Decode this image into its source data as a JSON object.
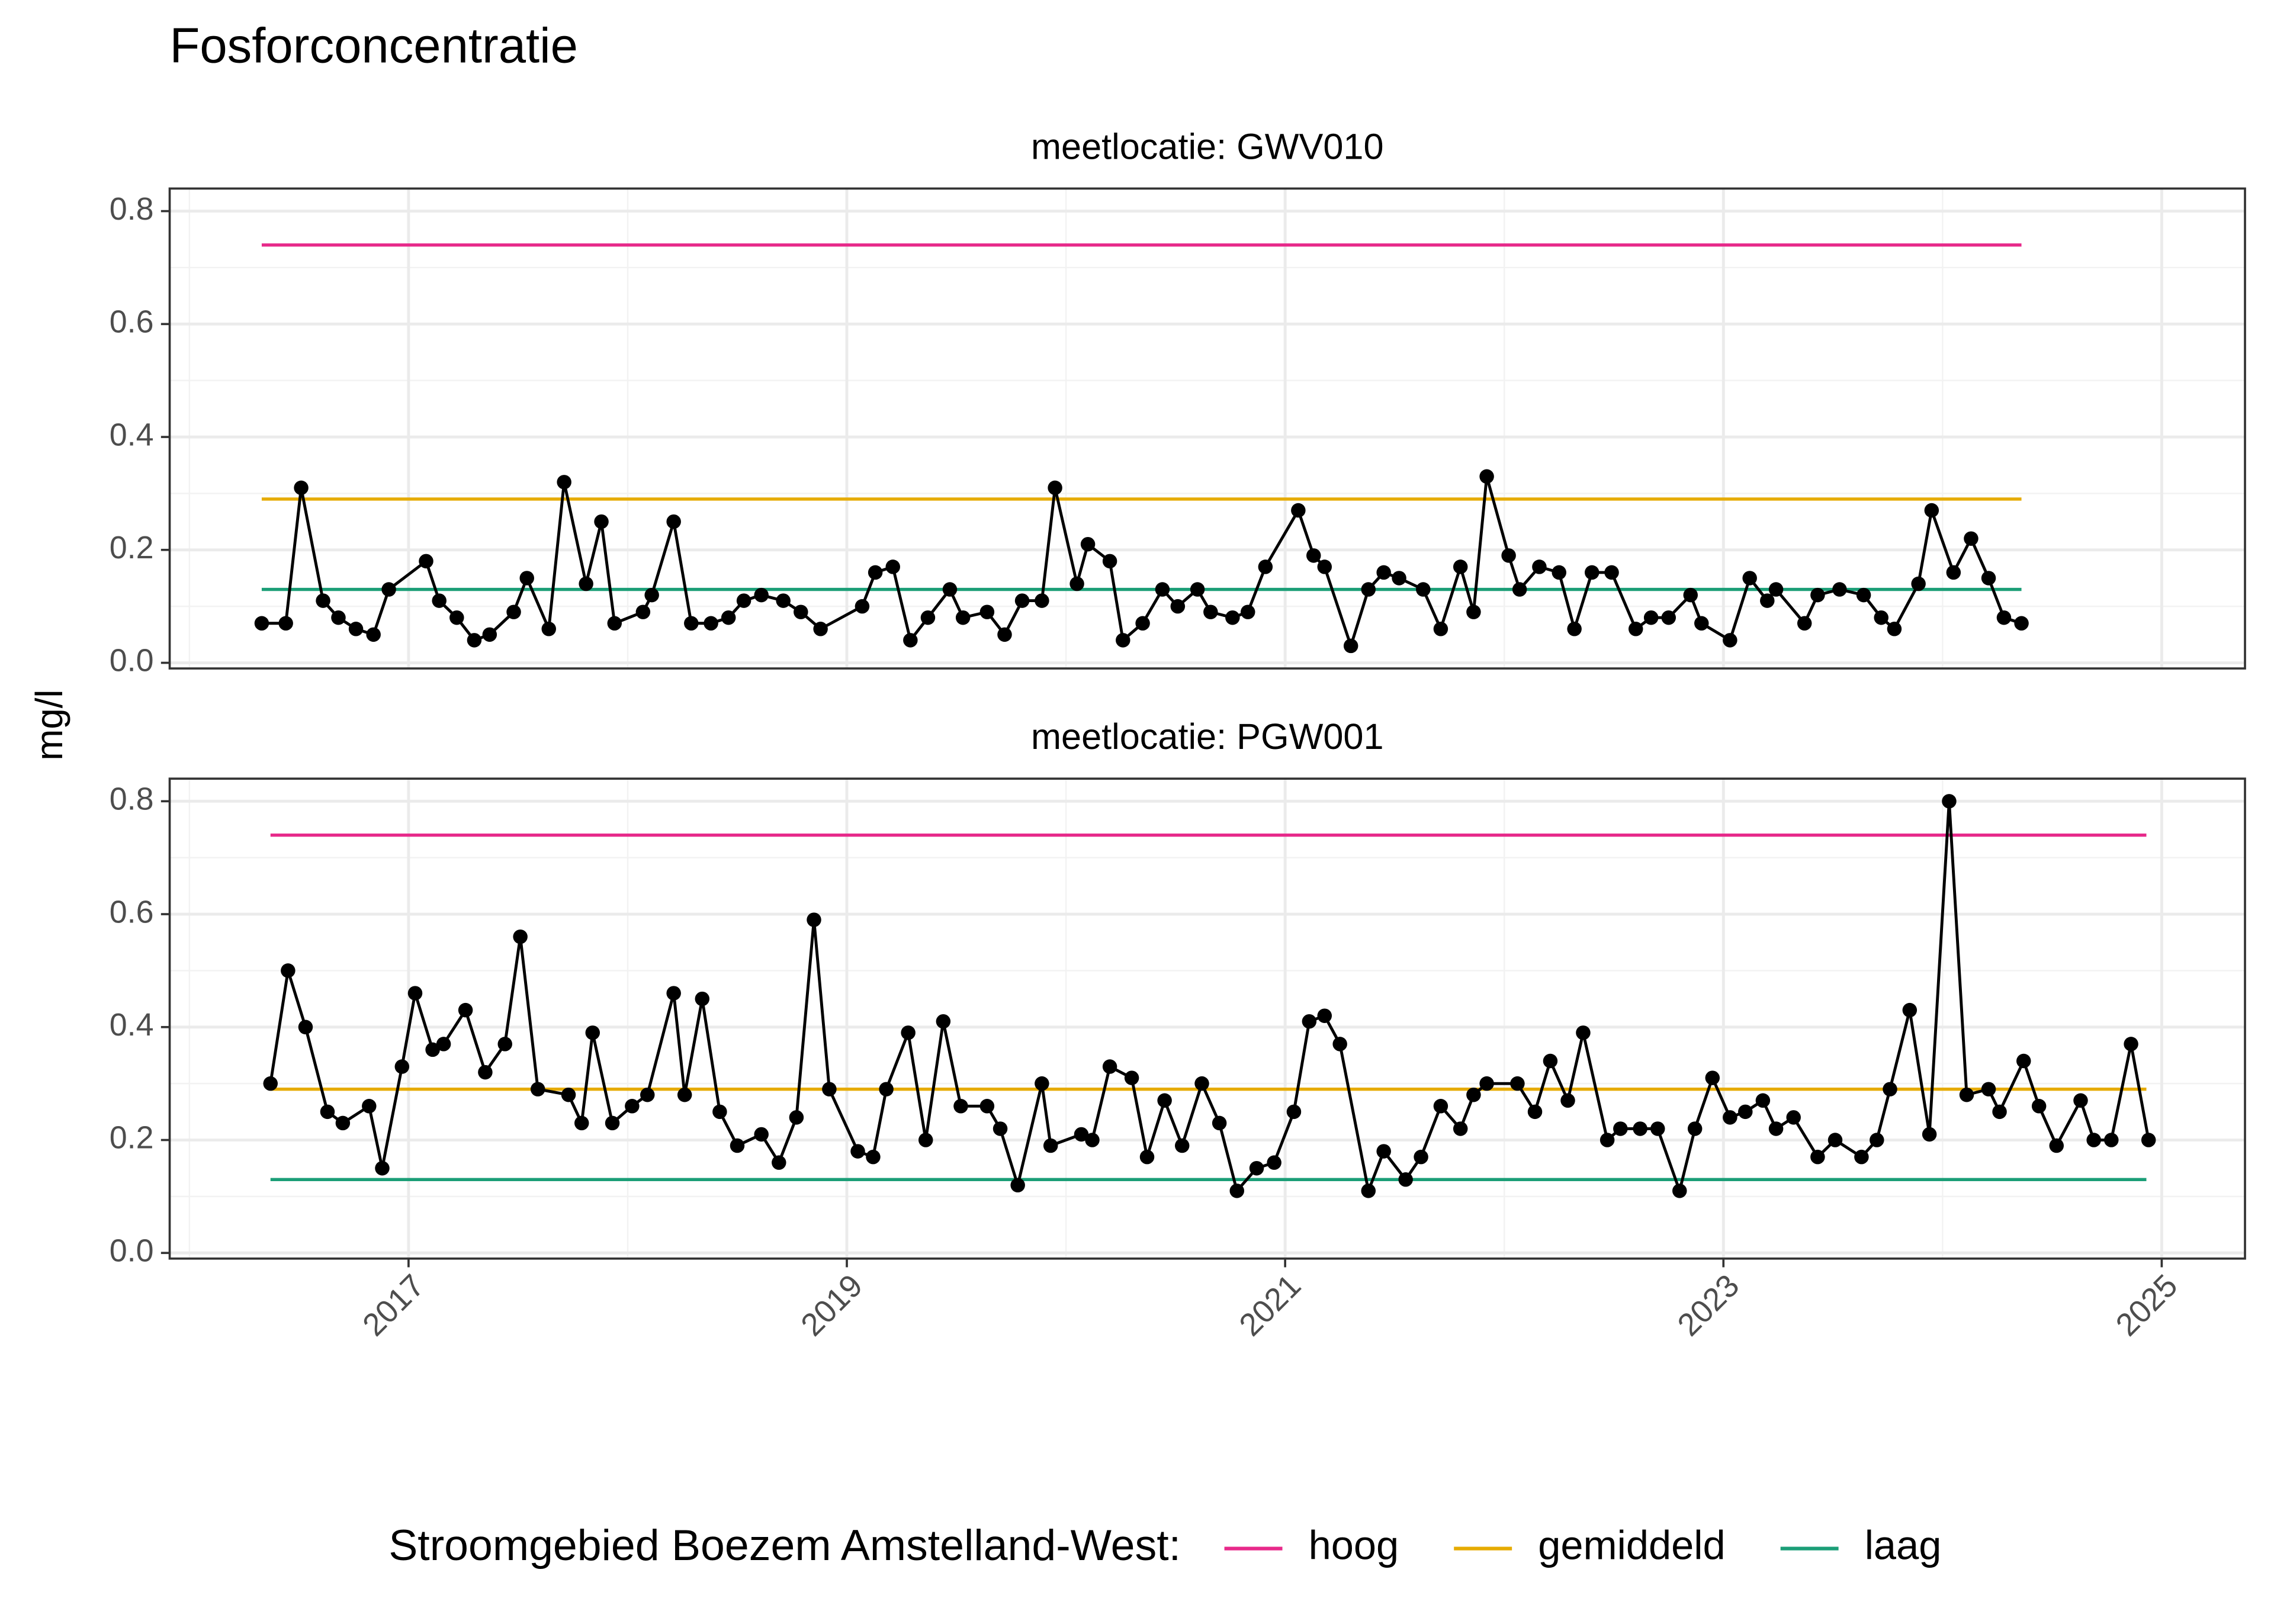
{
  "title": "Fosforconcentratie",
  "y_label": "mg/l",
  "legend_title": "Stroomgebied Boezem Amstelland-West:",
  "chart_data": [
    {
      "type": "line",
      "title": "meetlocatie: GWV010",
      "color": "#000000",
      "x": [
        2016.33,
        2016.44,
        2016.51,
        2016.61,
        2016.68,
        2016.76,
        2016.84,
        2016.91,
        2017.08,
        2017.14,
        2017.22,
        2017.3,
        2017.37,
        2017.48,
        2017.54,
        2017.64,
        2017.71,
        2017.81,
        2017.88,
        2017.94,
        2018.07,
        2018.11,
        2018.21,
        2018.29,
        2018.38,
        2018.46,
        2018.53,
        2018.61,
        2018.71,
        2018.79,
        2018.88,
        2019.07,
        2019.13,
        2019.21,
        2019.29,
        2019.37,
        2019.47,
        2019.53,
        2019.64,
        2019.72,
        2019.8,
        2019.89,
        2019.95,
        2020.05,
        2020.1,
        2020.2,
        2020.26,
        2020.35,
        2020.44,
        2020.51,
        2020.6,
        2020.66,
        2020.76,
        2020.83,
        2020.91,
        2021.06,
        2021.13,
        2021.18,
        2021.3,
        2021.38,
        2021.45,
        2021.52,
        2021.63,
        2021.71,
        2021.8,
        2021.86,
        2021.92,
        2022.02,
        2022.07,
        2022.16,
        2022.25,
        2022.32,
        2022.4,
        2022.49,
        2022.6,
        2022.67,
        2022.75,
        2022.85,
        2022.9,
        2023.03,
        2023.12,
        2023.2,
        2023.24,
        2023.37,
        2023.43,
        2023.53,
        2023.64,
        2023.72,
        2023.78,
        2023.89,
        2023.95,
        2024.05,
        2024.13,
        2024.21,
        2024.28,
        2024.36
      ],
      "values": [
        0.07,
        0.07,
        0.31,
        0.11,
        0.08,
        0.06,
        0.05,
        0.13,
        0.18,
        0.11,
        0.08,
        0.04,
        0.05,
        0.09,
        0.15,
        0.06,
        0.32,
        0.14,
        0.25,
        0.07,
        0.09,
        0.12,
        0.25,
        0.07,
        0.07,
        0.08,
        0.11,
        0.12,
        0.11,
        0.09,
        0.06,
        0.1,
        0.16,
        0.17,
        0.04,
        0.08,
        0.13,
        0.08,
        0.09,
        0.05,
        0.11,
        0.11,
        0.31,
        0.14,
        0.21,
        0.18,
        0.04,
        0.07,
        0.13,
        0.1,
        0.13,
        0.09,
        0.08,
        0.09,
        0.17,
        0.27,
        0.19,
        0.17,
        0.03,
        0.13,
        0.16,
        0.15,
        0.13,
        0.06,
        0.17,
        0.09,
        0.33,
        0.19,
        0.13,
        0.17,
        0.16,
        0.06,
        0.16,
        0.16,
        0.06,
        0.08,
        0.08,
        0.12,
        0.07,
        0.04,
        0.15,
        0.11,
        0.13,
        0.07,
        0.12,
        0.13,
        0.12,
        0.08,
        0.06,
        0.14,
        0.27,
        0.16,
        0.22,
        0.15,
        0.08,
        0.07
      ],
      "series": [
        {
          "name": "hoog",
          "color": "#e7298a",
          "x": [
            2016.33,
            2024.36
          ],
          "values": [
            0.74,
            0.74
          ]
        },
        {
          "name": "gemiddeld",
          "color": "#e6ab02",
          "x": [
            2016.33,
            2024.36
          ],
          "values": [
            0.29,
            0.29
          ]
        },
        {
          "name": "laag",
          "color": "#1b9e77",
          "x": [
            2016.33,
            2024.36
          ],
          "values": [
            0.13,
            0.13
          ]
        }
      ],
      "xlim": [
        2015.91,
        2025.38
      ],
      "xticks": [
        2017,
        2019,
        2021,
        2023,
        2025
      ],
      "xticks_minor": [
        2016,
        2018,
        2020,
        2022,
        2024
      ],
      "ylim": [
        -0.01,
        0.84
      ],
      "yticks": [
        {
          "value": 0,
          "label": "0.0"
        },
        0.2,
        0.4,
        0.6,
        0.8
      ],
      "yticks_minor": [
        0.1,
        0.3,
        0.5,
        0.7
      ],
      "grid": true
    },
    {
      "type": "line",
      "title": "meetlocatie: PGW001",
      "color": "#000000",
      "x": [
        2016.37,
        2016.45,
        2016.53,
        2016.63,
        2016.7,
        2016.82,
        2016.88,
        2016.97,
        2017.03,
        2017.11,
        2017.16,
        2017.26,
        2017.35,
        2017.44,
        2017.51,
        2017.59,
        2017.73,
        2017.79,
        2017.84,
        2017.93,
        2018.02,
        2018.09,
        2018.21,
        2018.26,
        2018.34,
        2018.42,
        2018.5,
        2018.61,
        2018.69,
        2018.77,
        2018.85,
        2018.92,
        2019.05,
        2019.12,
        2019.18,
        2019.28,
        2019.36,
        2019.44,
        2019.52,
        2019.64,
        2019.7,
        2019.78,
        2019.89,
        2019.93,
        2020.07,
        2020.12,
        2020.2,
        2020.3,
        2020.37,
        2020.45,
        2020.53,
        2020.62,
        2020.7,
        2020.78,
        2020.87,
        2020.95,
        2021.04,
        2021.11,
        2021.18,
        2021.25,
        2021.38,
        2021.45,
        2021.55,
        2021.62,
        2021.71,
        2021.8,
        2021.86,
        2021.92,
        2022.06,
        2022.14,
        2022.21,
        2022.29,
        2022.36,
        2022.47,
        2022.53,
        2022.62,
        2022.7,
        2022.8,
        2022.87,
        2022.95,
        2023.03,
        2023.1,
        2023.18,
        2023.24,
        2023.32,
        2023.43,
        2023.51,
        2023.63,
        2023.7,
        2023.76,
        2023.85,
        2023.94,
        2024.03,
        2024.11,
        2024.21,
        2024.26,
        2024.37,
        2024.44,
        2024.52,
        2024.63,
        2024.69,
        2024.77,
        2024.86,
        2024.94
      ],
      "values": [
        0.3,
        0.5,
        0.4,
        0.25,
        0.23,
        0.26,
        0.15,
        0.33,
        0.46,
        0.36,
        0.37,
        0.43,
        0.32,
        0.37,
        0.56,
        0.29,
        0.28,
        0.23,
        0.39,
        0.23,
        0.26,
        0.28,
        0.46,
        0.28,
        0.45,
        0.25,
        0.19,
        0.21,
        0.16,
        0.24,
        0.59,
        0.29,
        0.18,
        0.17,
        0.29,
        0.39,
        0.2,
        0.41,
        0.26,
        0.26,
        0.22,
        0.12,
        0.3,
        0.19,
        0.21,
        0.2,
        0.33,
        0.31,
        0.17,
        0.27,
        0.19,
        0.3,
        0.23,
        0.11,
        0.15,
        0.16,
        0.25,
        0.41,
        0.42,
        0.37,
        0.11,
        0.18,
        0.13,
        0.17,
        0.26,
        0.22,
        0.28,
        0.3,
        0.3,
        0.25,
        0.34,
        0.27,
        0.39,
        0.2,
        0.22,
        0.22,
        0.22,
        0.11,
        0.22,
        0.31,
        0.24,
        0.25,
        0.27,
        0.22,
        0.24,
        0.17,
        0.2,
        0.17,
        0.2,
        0.29,
        0.43,
        0.21,
        0.8,
        0.28,
        0.29,
        0.25,
        0.34,
        0.26,
        0.19,
        0.27,
        0.2,
        0.2,
        0.37,
        0.2
      ],
      "series": [
        {
          "name": "hoog",
          "color": "#e7298a",
          "x": [
            2016.37,
            2024.93
          ],
          "values": [
            0.74,
            0.74
          ]
        },
        {
          "name": "gemiddeld",
          "color": "#e6ab02",
          "x": [
            2016.37,
            2024.93
          ],
          "values": [
            0.29,
            0.29
          ]
        },
        {
          "name": "laag",
          "color": "#1b9e77",
          "x": [
            2016.37,
            2024.93
          ],
          "values": [
            0.13,
            0.13
          ]
        }
      ],
      "xlim": [
        2015.91,
        2025.38
      ],
      "xticks": [
        2017,
        2019,
        2021,
        2023,
        2025
      ],
      "xticks_minor": [
        2016,
        2018,
        2020,
        2022,
        2024
      ],
      "ylim": [
        -0.01,
        0.84
      ],
      "yticks": [
        {
          "value": 0,
          "label": "0.0"
        },
        0.2,
        0.4,
        0.6,
        0.8
      ],
      "yticks_minor": [
        0.1,
        0.3,
        0.5,
        0.7
      ],
      "grid": true
    }
  ]
}
